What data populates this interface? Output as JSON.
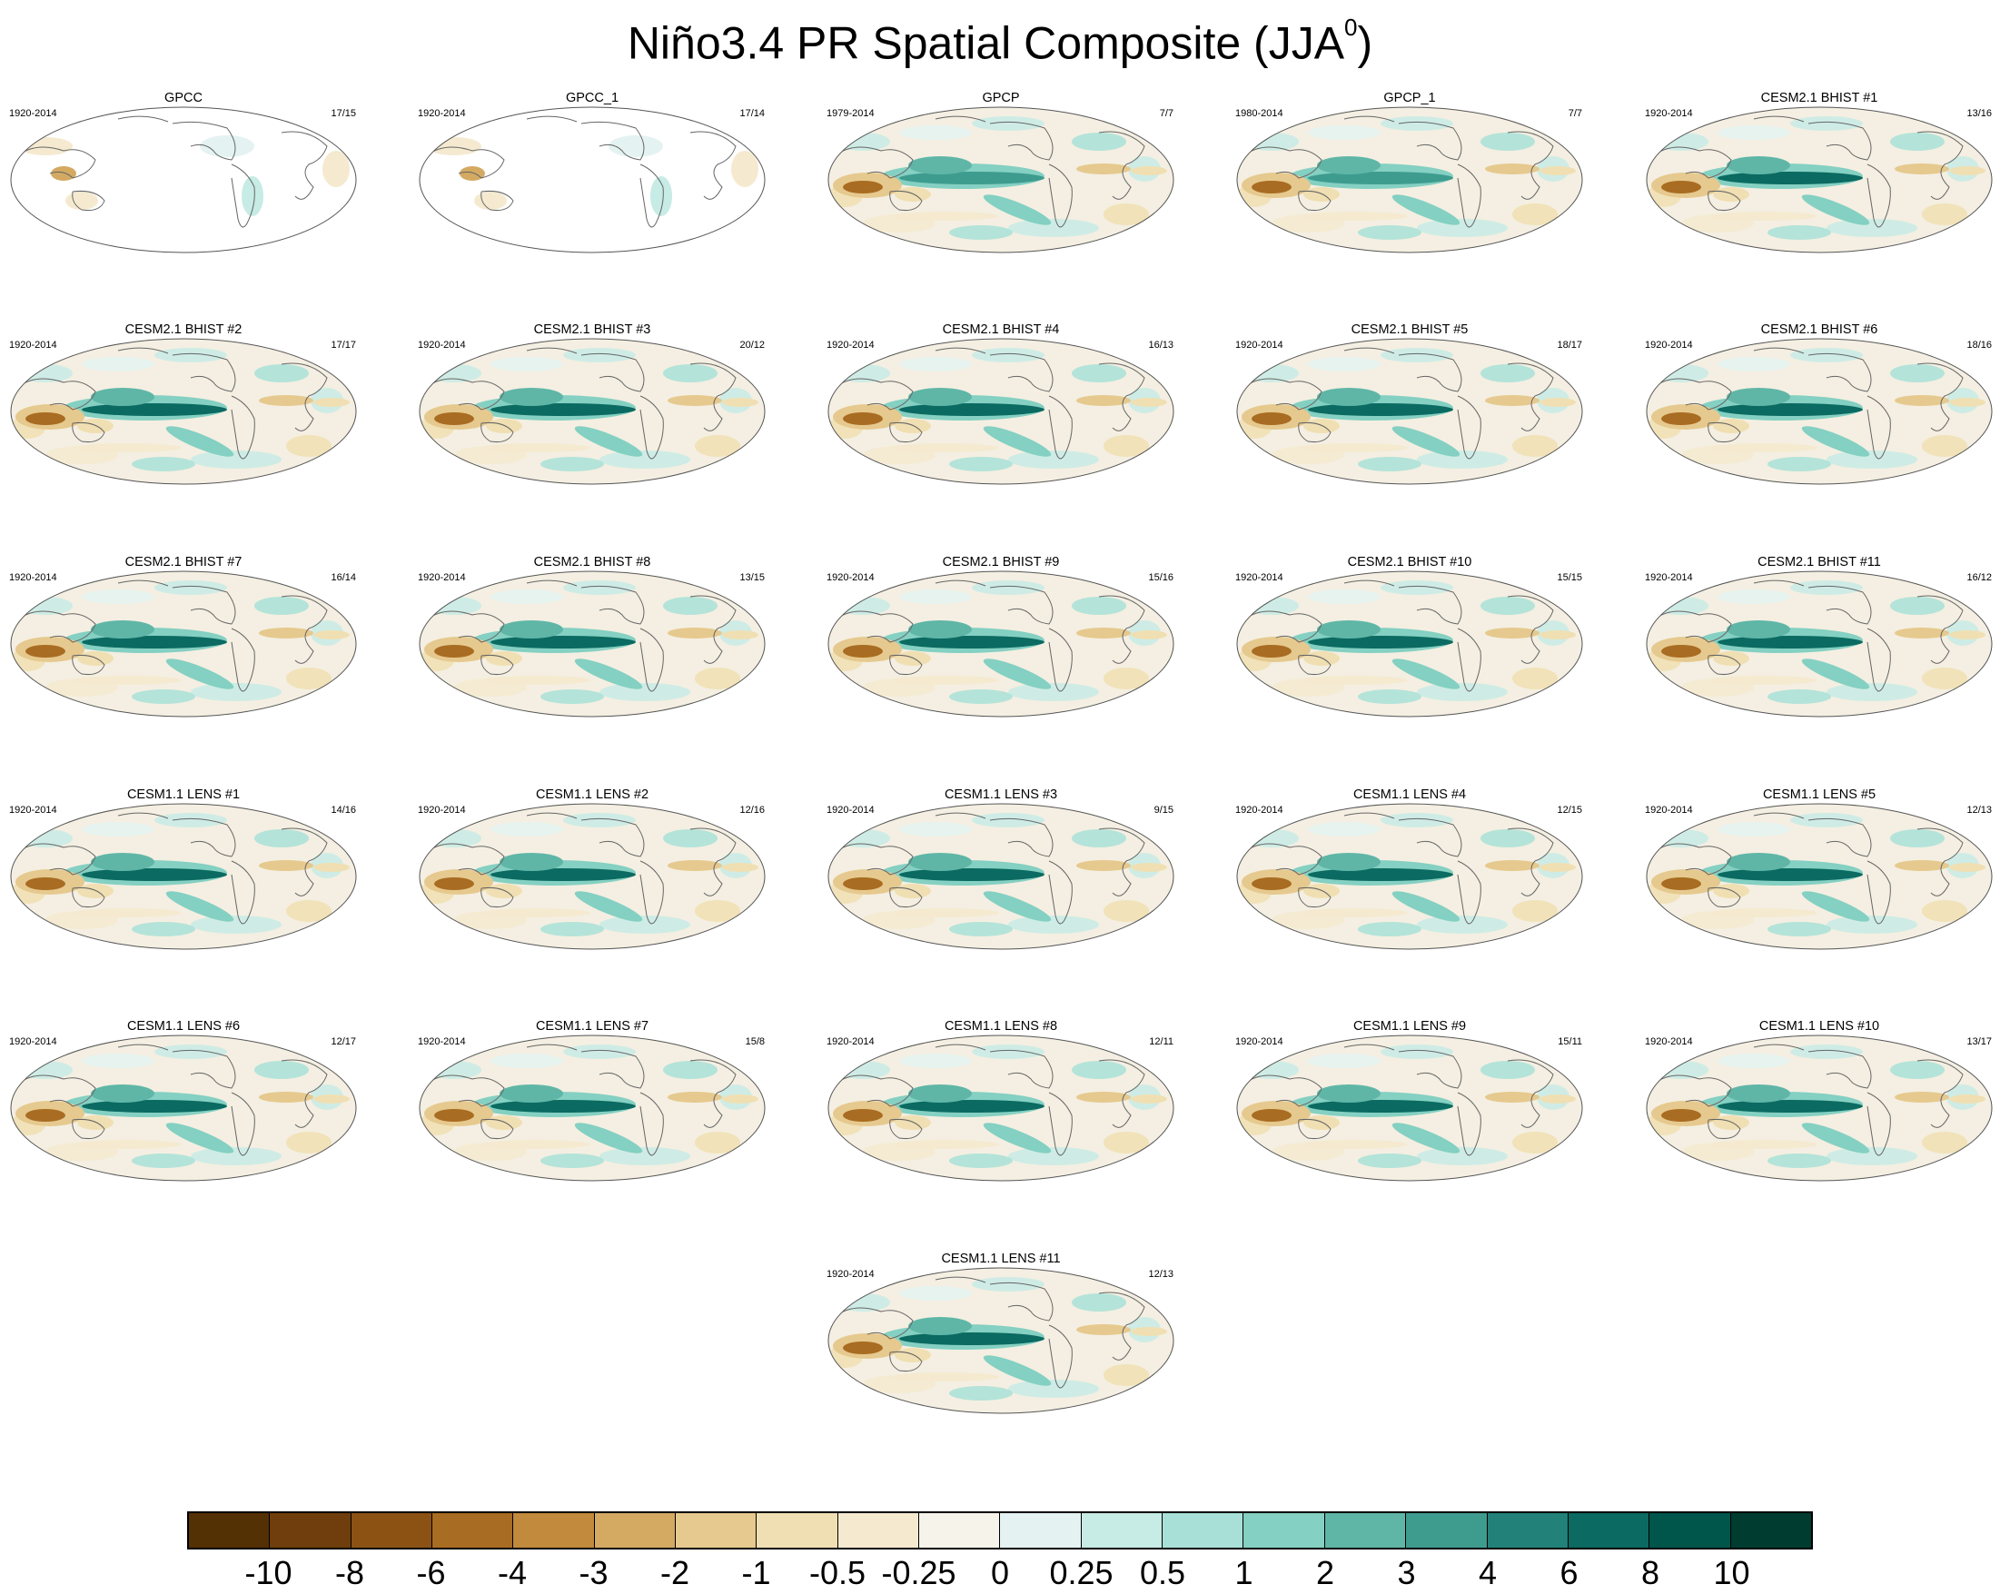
{
  "title": "Niño3.4 PR Spatial Composite (JJA",
  "title_superscript": "0",
  "title_close": ")",
  "panels": [
    {
      "title": "GPCC",
      "years": "1920-2014",
      "count": "17/15",
      "type": "obs-land"
    },
    {
      "title": "GPCC_1",
      "years": "1920-2014",
      "count": "17/14",
      "type": "obs-land"
    },
    {
      "title": "GPCP",
      "years": "1979-2014",
      "count": "7/7",
      "type": "obs"
    },
    {
      "title": "GPCP_1",
      "years": "1980-2014",
      "count": "7/7",
      "type": "obs"
    },
    {
      "title": "CESM2.1 BHIST #1",
      "years": "1920-2014",
      "count": "13/16",
      "type": "model"
    },
    {
      "title": "CESM2.1 BHIST #2",
      "years": "1920-2014",
      "count": "17/17",
      "type": "model"
    },
    {
      "title": "CESM2.1 BHIST #3",
      "years": "1920-2014",
      "count": "20/12",
      "type": "model"
    },
    {
      "title": "CESM2.1 BHIST #4",
      "years": "1920-2014",
      "count": "16/13",
      "type": "model"
    },
    {
      "title": "CESM2.1 BHIST #5",
      "years": "1920-2014",
      "count": "18/17",
      "type": "model"
    },
    {
      "title": "CESM2.1 BHIST #6",
      "years": "1920-2014",
      "count": "18/16",
      "type": "model"
    },
    {
      "title": "CESM2.1 BHIST #7",
      "years": "1920-2014",
      "count": "16/14",
      "type": "model"
    },
    {
      "title": "CESM2.1 BHIST #8",
      "years": "1920-2014",
      "count": "13/15",
      "type": "model"
    },
    {
      "title": "CESM2.1 BHIST #9",
      "years": "1920-2014",
      "count": "15/16",
      "type": "model"
    },
    {
      "title": "CESM2.1 BHIST #10",
      "years": "1920-2014",
      "count": "15/15",
      "type": "model"
    },
    {
      "title": "CESM2.1 BHIST #11",
      "years": "1920-2014",
      "count": "16/12",
      "type": "model"
    },
    {
      "title": "CESM1.1 LENS #1",
      "years": "1920-2014",
      "count": "14/16",
      "type": "model"
    },
    {
      "title": "CESM1.1 LENS #2",
      "years": "1920-2014",
      "count": "12/16",
      "type": "model"
    },
    {
      "title": "CESM1.1 LENS #3",
      "years": "1920-2014",
      "count": "9/15",
      "type": "model"
    },
    {
      "title": "CESM1.1 LENS #4",
      "years": "1920-2014",
      "count": "12/15",
      "type": "model"
    },
    {
      "title": "CESM1.1 LENS #5",
      "years": "1920-2014",
      "count": "12/13",
      "type": "model"
    },
    {
      "title": "CESM1.1 LENS #6",
      "years": "1920-2014",
      "count": "12/17",
      "type": "model"
    },
    {
      "title": "CESM1.1 LENS #7",
      "years": "1920-2014",
      "count": "15/8",
      "type": "model"
    },
    {
      "title": "CESM1.1 LENS #8",
      "years": "1920-2014",
      "count": "12/11",
      "type": "model"
    },
    {
      "title": "CESM1.1 LENS #9",
      "years": "1920-2014",
      "count": "15/11",
      "type": "model"
    },
    {
      "title": "CESM1.1 LENS #10",
      "years": "1920-2014",
      "count": "13/17",
      "type": "model"
    },
    {
      "title": "CESM1.1 LENS #11",
      "years": "1920-2014",
      "count": "12/13",
      "type": "model"
    }
  ],
  "colorbar": {
    "colors": [
      "#543005",
      "#6f3e0c",
      "#8c5214",
      "#a86c22",
      "#c28a3c",
      "#d4aa63",
      "#e6c98e",
      "#f0dfb2",
      "#f5ead0",
      "#f5f3ea",
      "#e4f3f1",
      "#c7ebe5",
      "#a8e0d7",
      "#84d0c2",
      "#5fb6a7",
      "#3e9c8f",
      "#22827a",
      "#0b6a61",
      "#01564c",
      "#003c30"
    ],
    "labels": [
      "-10",
      "-8",
      "-6",
      "-4",
      "-3",
      "-2",
      "-1",
      "-0.5",
      "-0.25",
      "0",
      "0.25",
      "0.5",
      "1",
      "2",
      "3",
      "4",
      "6",
      "8",
      "10"
    ]
  }
}
